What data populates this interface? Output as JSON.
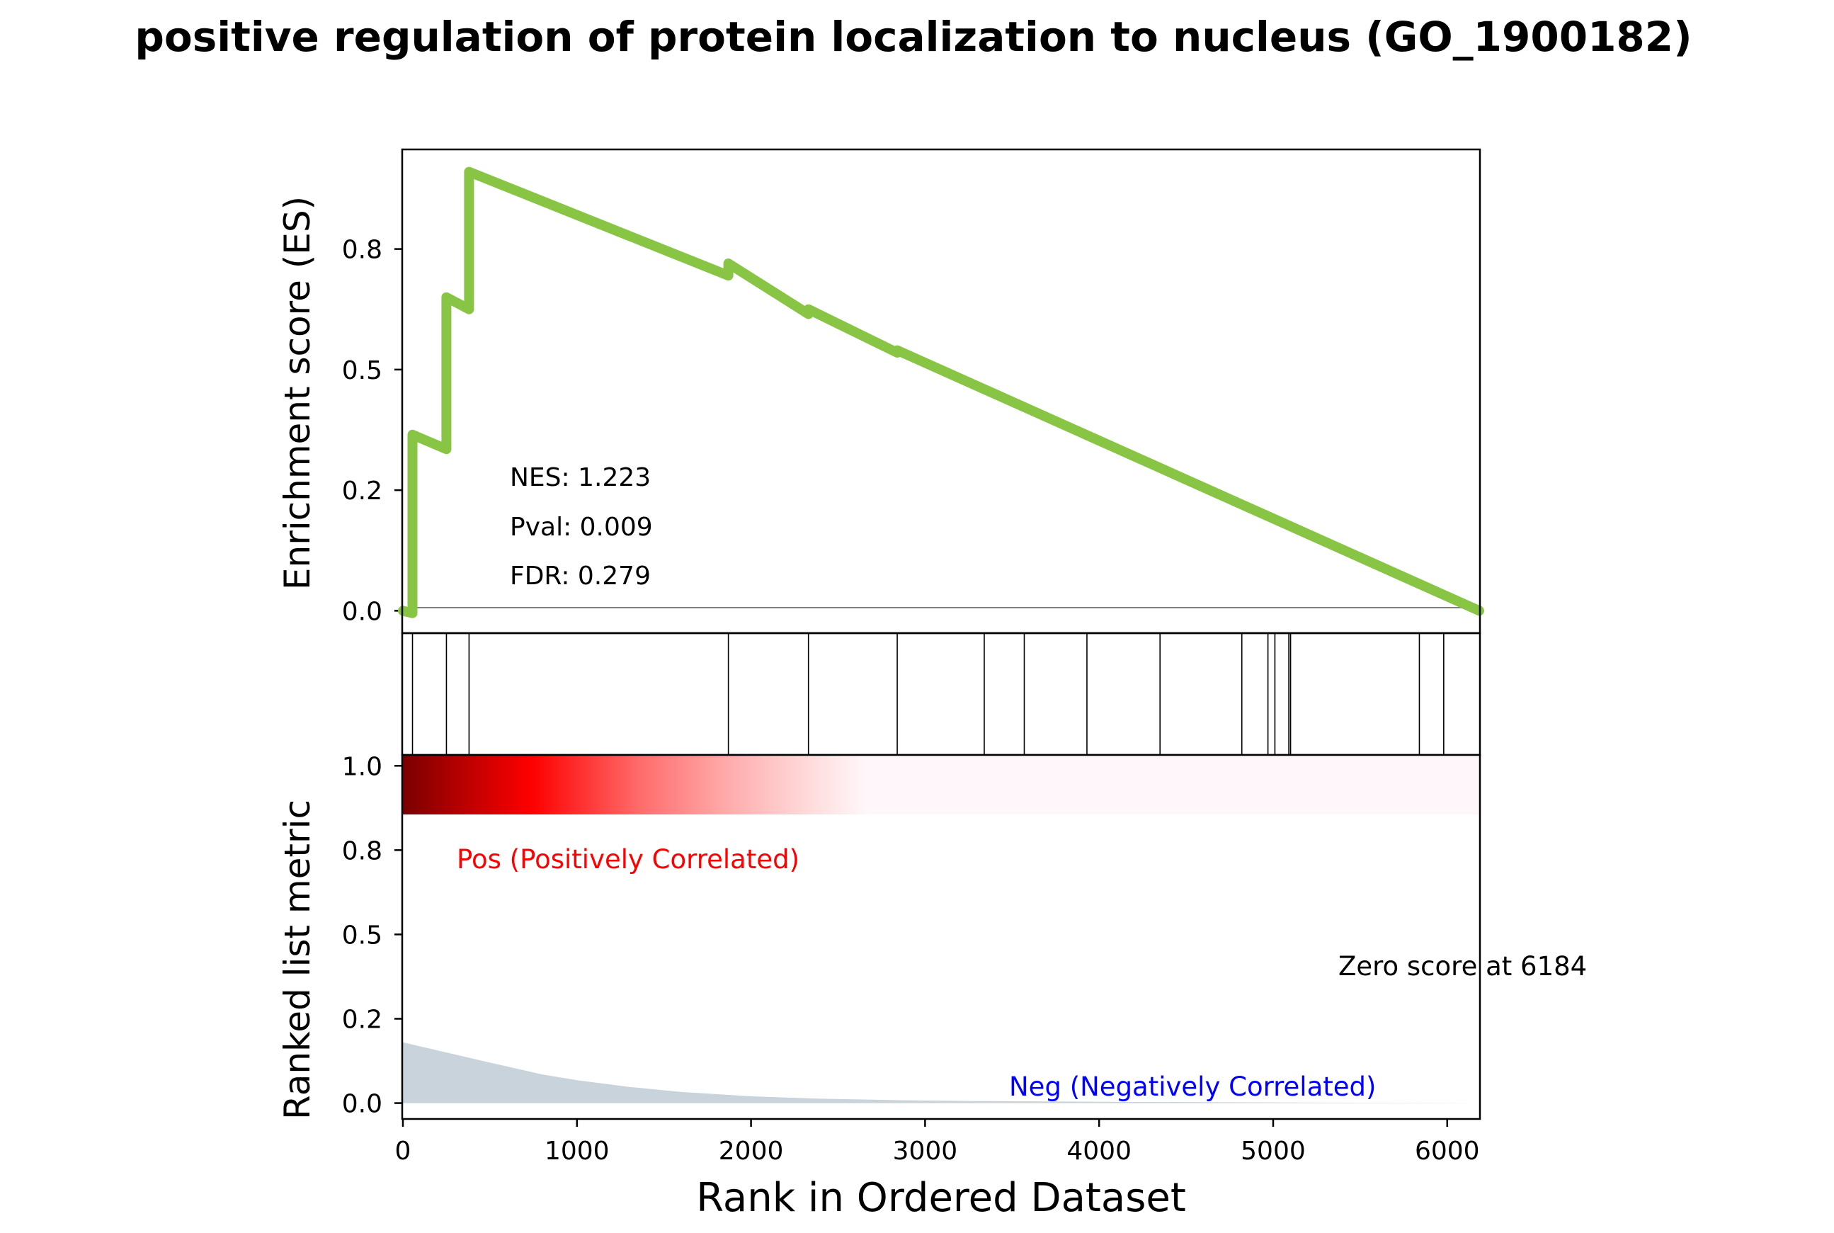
{
  "title": "positive regulation of protein localization to nucleus (GO_1900182)",
  "colors": {
    "es_line": "#88c544",
    "pos_label": "#ff0000",
    "neg_label": "#0000ff",
    "metric_fill": "#c8d3dc",
    "heatmap_dark": "#7a0000",
    "heatmap_mid": "#ff0000",
    "heatmap_light": "#fff7f9"
  },
  "chart_data": [
    {
      "type": "line",
      "panel": "enrichment",
      "ylabel": "Enrichment score (ES)",
      "xlim": [
        0,
        6184
      ],
      "ylim": [
        -0.045,
        0.955
      ],
      "yticks": [
        0.0,
        0.25,
        0.5,
        0.75
      ],
      "ytick_labels": [
        "0.0",
        "0.2",
        "0.5",
        "0.8"
      ],
      "zero_line": true,
      "annotations": [
        "NES: 1.223",
        "Pval: 0.009",
        "FDR: 0.279"
      ],
      "series": [
        {
          "x": [
            0,
            55,
            55,
            250,
            250,
            380,
            380,
            1870,
            1870,
            2330,
            2330,
            2840,
            2840,
            6184
          ],
          "y": [
            0.0,
            -0.005,
            0.365,
            0.335,
            0.65,
            0.625,
            0.91,
            0.695,
            0.72,
            0.615,
            0.625,
            0.535,
            0.54,
            0.0
          ]
        }
      ]
    },
    {
      "type": "hits",
      "panel": "gene-set-hits",
      "xlim": [
        0,
        6184
      ],
      "positions": [
        55,
        250,
        380,
        1870,
        2330,
        2840,
        3340,
        3570,
        3930,
        4350,
        4820,
        4970,
        5010,
        5090,
        5100,
        5840,
        5980
      ]
    },
    {
      "type": "heatmap",
      "panel": "rank-heatmap",
      "xlim": [
        0,
        6184
      ],
      "gradient_stops": [
        [
          0.0,
          "#7a0000"
        ],
        [
          0.04,
          "#a80000"
        ],
        [
          0.12,
          "#ff0000"
        ],
        [
          0.22,
          "#ff6b6b"
        ],
        [
          0.3,
          "#ffaaaa"
        ],
        [
          0.38,
          "#ffdcdc"
        ],
        [
          0.43,
          "#fff7f9"
        ],
        [
          1.0,
          "#fff7f9"
        ]
      ]
    },
    {
      "type": "area",
      "panel": "ranked-metric",
      "ylabel": "Ranked list metric",
      "xlabel": "Rank in Ordered Dataset",
      "xlim": [
        0,
        6184
      ],
      "ylim": [
        -0.045,
        1.03
      ],
      "xticks": [
        0,
        1000,
        2000,
        3000,
        4000,
        5000,
        6000
      ],
      "xtick_labels": [
        "0",
        "1000",
        "2000",
        "3000",
        "4000",
        "5000",
        "6000"
      ],
      "yticks": [
        0.0,
        0.25,
        0.5,
        0.75,
        1.0
      ],
      "ytick_labels": [
        "0.0",
        "0.2",
        "0.5",
        "0.8",
        "1.0"
      ],
      "pos_label": "Pos (Positively Correlated)",
      "neg_label": "Neg (Negatively Correlated)",
      "zero_label": "Zero score at 6184",
      "series": [
        {
          "x": [
            0,
            250,
            500,
            800,
            1000,
            1300,
            1600,
            2000,
            2400,
            2800,
            3300,
            4000,
            5000,
            6184
          ],
          "y": [
            0.18,
            0.15,
            0.12,
            0.085,
            0.068,
            0.048,
            0.033,
            0.02,
            0.013,
            0.009,
            0.006,
            0.004,
            0.002,
            0.0
          ]
        }
      ]
    }
  ]
}
